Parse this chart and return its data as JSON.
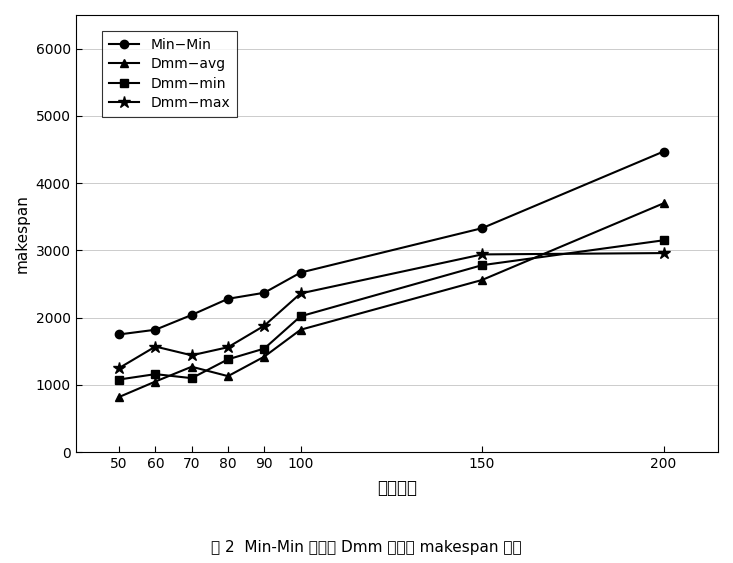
{
  "x": [
    50,
    60,
    70,
    80,
    90,
    100,
    150,
    200
  ],
  "min_min": [
    1750,
    1820,
    2040,
    2280,
    2370,
    2670,
    3330,
    4470
  ],
  "dmm_avg": [
    820,
    1050,
    1270,
    1130,
    1420,
    1820,
    2560,
    3700
  ],
  "dmm_min": [
    1080,
    1160,
    1100,
    1380,
    1540,
    2020,
    2780,
    3150
  ],
  "dmm_max": [
    1250,
    1570,
    1440,
    1560,
    1880,
    2360,
    2940,
    2960
  ],
  "xlabel": "任务数量",
  "ylabel": "makespan",
  "caption": "图 2  Min-Min 算法和 Dmm 算法的 makespan 比较",
  "ylim": [
    0,
    6500
  ],
  "yticks": [
    0,
    1000,
    2000,
    3000,
    4000,
    5000,
    6000
  ],
  "legend_labels": [
    "Min−Min",
    "Dmm−avg",
    "Dmm−min",
    "Dmm−max"
  ],
  "line_color": "#000000",
  "bg_color": "#ffffff",
  "marker_minmin": "o",
  "marker_avg": "^",
  "marker_min": "s",
  "marker_max": "*"
}
